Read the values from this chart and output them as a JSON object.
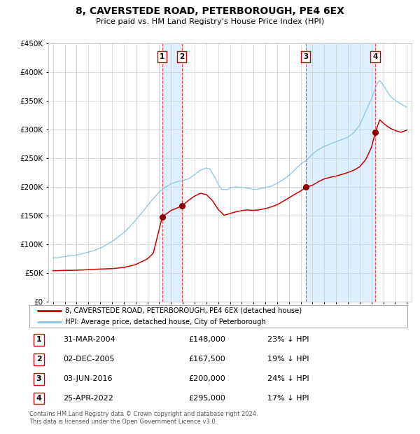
{
  "title": "8, CAVERSTEDE ROAD, PETERBOROUGH, PE4 6EX",
  "subtitle": "Price paid vs. HM Land Registry's House Price Index (HPI)",
  "legend_line1": "8, CAVERSTEDE ROAD, PETERBOROUGH, PE4 6EX (detached house)",
  "legend_line2": "HPI: Average price, detached house, City of Peterborough",
  "transactions": [
    {
      "num": 1,
      "date": "31-MAR-2004",
      "price": 148000,
      "pct": "23% ↓ HPI",
      "date_decimal": 2004.25
    },
    {
      "num": 2,
      "date": "02-DEC-2005",
      "price": 167500,
      "pct": "19% ↓ HPI",
      "date_decimal": 2005.92
    },
    {
      "num": 3,
      "date": "03-JUN-2016",
      "price": 200000,
      "pct": "24% ↓ HPI",
      "date_decimal": 2016.42
    },
    {
      "num": 4,
      "date": "25-APR-2022",
      "price": 295000,
      "pct": "17% ↓ HPI",
      "date_decimal": 2022.32
    }
  ],
  "hpi_color": "#89c4e1",
  "price_color": "#cc0000",
  "marker_color": "#8b0000",
  "vline_color": "#ff4444",
  "shade_color": "#ddeeff",
  "grid_color": "#cccccc",
  "background_color": "#ffffff",
  "ylim": [
    0,
    450000
  ],
  "yticks": [
    0,
    50000,
    100000,
    150000,
    200000,
    250000,
    300000,
    350000,
    400000,
    450000
  ],
  "ytick_labels": [
    "£0",
    "£50K",
    "£100K",
    "£150K",
    "£200K",
    "£250K",
    "£300K",
    "£350K",
    "£400K",
    "£450K"
  ],
  "xlim_start": 1994.6,
  "xlim_end": 2025.4,
  "footer": "Contains HM Land Registry data © Crown copyright and database right 2024.\nThis data is licensed under the Open Government Licence v3.0.",
  "table_rows": [
    [
      "1",
      "31-MAR-2004",
      "£148,000",
      "23% ↓ HPI"
    ],
    [
      "2",
      "02-DEC-2005",
      "£167,500",
      "19% ↓ HPI"
    ],
    [
      "3",
      "03-JUN-2016",
      "£200,000",
      "24% ↓ HPI"
    ],
    [
      "4",
      "25-APR-2022",
      "£295,000",
      "17% ↓ HPI"
    ]
  ]
}
